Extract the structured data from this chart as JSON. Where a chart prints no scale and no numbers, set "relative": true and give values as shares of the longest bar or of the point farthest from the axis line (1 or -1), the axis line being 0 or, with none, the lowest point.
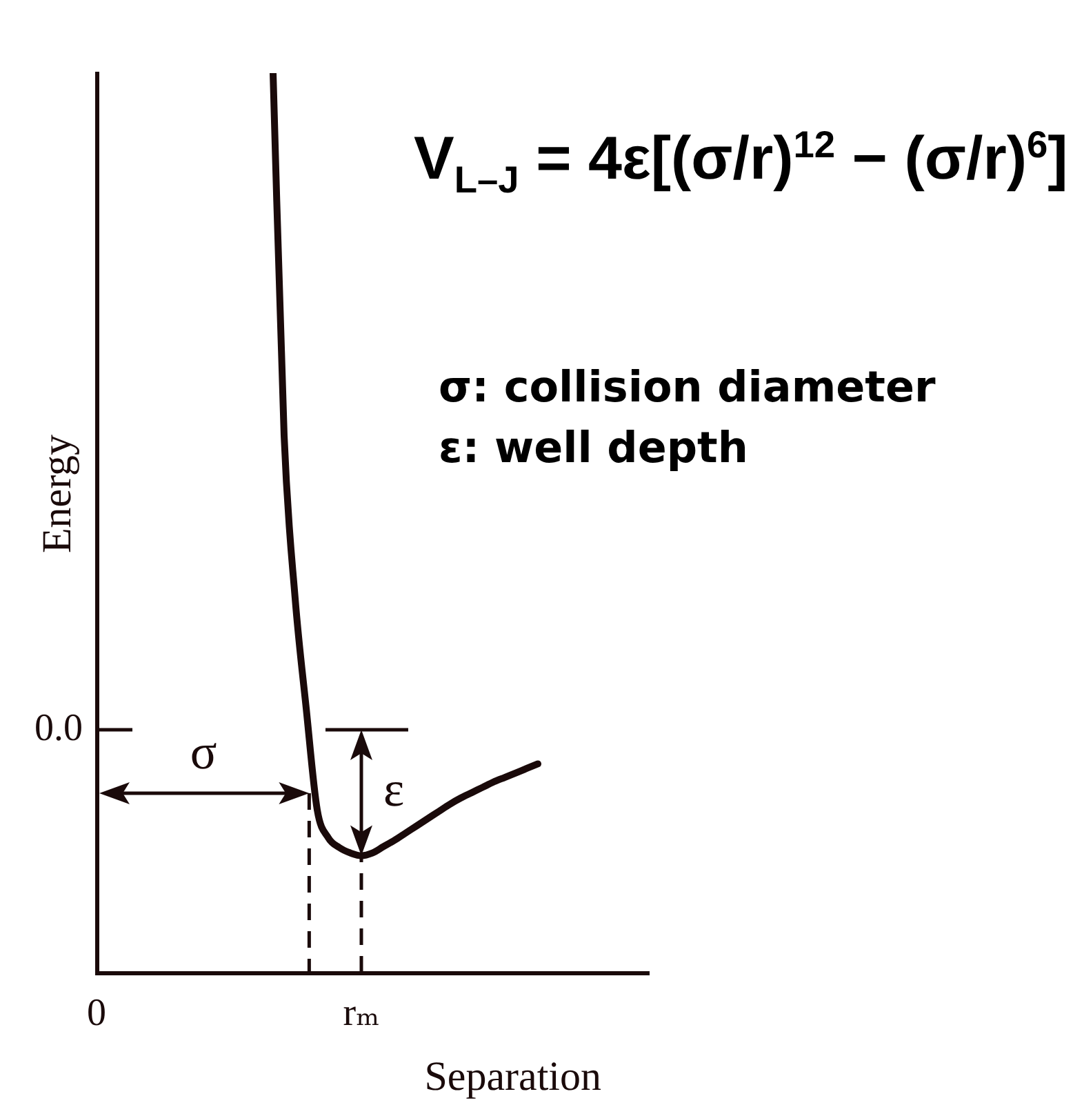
{
  "chart_data": {
    "type": "line",
    "xlabel": "Separation",
    "ylabel": "Energy",
    "relative": true,
    "color": "#1a0a0a",
    "categories": [
      "0",
      null,
      null,
      null,
      null,
      null,
      null,
      null,
      null,
      null,
      null,
      null,
      null,
      null,
      null,
      null,
      null,
      null,
      null,
      null,
      null,
      null,
      null,
      null,
      "rₘ",
      null,
      null,
      null,
      null,
      null,
      null,
      null,
      null,
      null,
      null,
      null,
      null,
      null,
      null,
      null,
      null,
      null,
      null,
      null,
      null,
      null,
      null,
      null,
      null,
      null,
      null
    ],
    "values": [
      null,
      null,
      null,
      null,
      null,
      null,
      null,
      null,
      null,
      null,
      null,
      null,
      null,
      null,
      null,
      null,
      1,
      0.597,
      0.416,
      0.294,
      0.181,
      0.15,
      0.139,
      0.133,
      0.13,
      0.133,
      0.14,
      0.147,
      0.155,
      0.163,
      0.171,
      0.179,
      0.187,
      0.194,
      0.2,
      0.206,
      0.212,
      0.217,
      0.222,
      0.227,
      0.232,
      null,
      null,
      null,
      null,
      null,
      null,
      null,
      null,
      null,
      null
    ],
    "ref_lines": [
      {
        "axis": "y",
        "value": 0.27
      },
      {
        "axis": "x",
        "value": "rₘ",
        "line_style": "dashed"
      }
    ],
    "annotations": [
      "V$_{L–J}$ = 4ε[(σ/r)$^{12}$ − (σ/r)$^{6}$]",
      "σ: collision diameter",
      "ε: well depth",
      "0.0",
      "σ",
      "ε"
    ]
  }
}
